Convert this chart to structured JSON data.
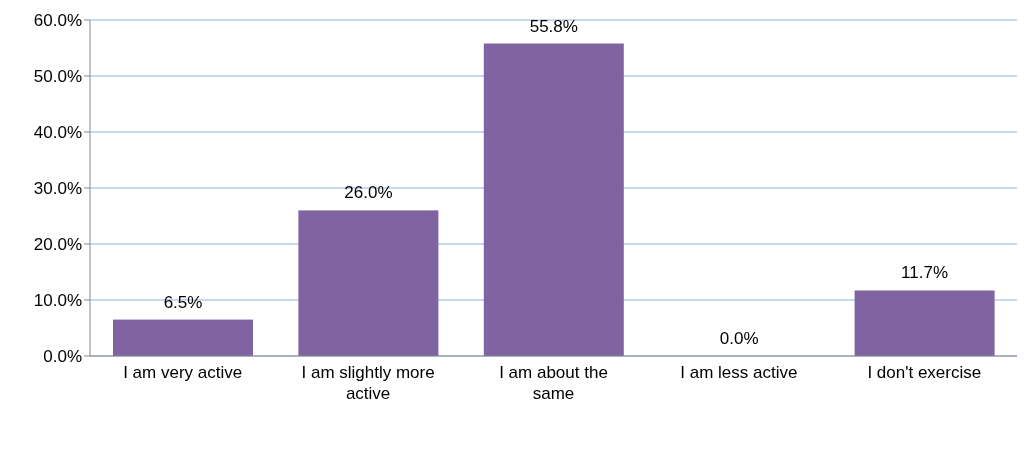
{
  "chart_data": {
    "type": "bar",
    "categories": [
      "I am very active",
      "I am slightly more active",
      "I am about the same",
      "I am less active",
      "I don't exercise"
    ],
    "values": [
      6.5,
      26.0,
      55.8,
      0.0,
      11.7
    ],
    "value_labels": [
      "6.5%",
      "26.0%",
      "55.8%",
      "0.0%",
      "11.7%"
    ],
    "color": "#8064a2",
    "ylim": [
      0,
      60
    ],
    "yticks": [
      {
        "value": 0,
        "label": "0.0%"
      },
      {
        "value": 10,
        "label": "10.0%"
      },
      {
        "value": 20,
        "label": "20.0%"
      },
      {
        "value": 30,
        "label": "30.0%"
      },
      {
        "value": 40,
        "label": "40.0%"
      },
      {
        "value": 50,
        "label": "50.0%"
      },
      {
        "value": 60,
        "label": "60.0%"
      }
    ],
    "grid": "y",
    "legend": false
  }
}
